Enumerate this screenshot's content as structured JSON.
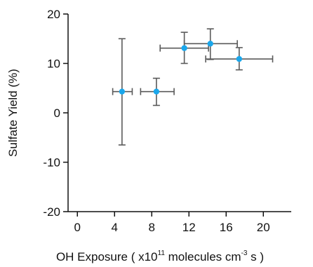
{
  "chart_data": {
    "type": "scatter",
    "xlabel": {
      "prefix": "OH Exposure ( x10",
      "exponent": "11",
      "middle": " molecules cm",
      "unit_exponent": "-3",
      "suffix": " s )"
    },
    "ylabel": "Sulfate Yield (%)",
    "xlim": [
      -1,
      23
    ],
    "ylim": [
      -20,
      20
    ],
    "x_ticks": [
      0,
      4,
      8,
      12,
      16,
      20
    ],
    "y_ticks": [
      -20,
      -10,
      0,
      10,
      20
    ],
    "grid": false,
    "legend": "none",
    "marker_color": "#1aa7ec",
    "errorbar_color": "#5a5a5a",
    "points": [
      {
        "x": 4.8,
        "y": 4.3,
        "xerr_low": 3.8,
        "xerr_high": 5.9,
        "yerr_low": -6.5,
        "yerr_high": 15.0
      },
      {
        "x": 8.5,
        "y": 4.3,
        "xerr_low": 6.8,
        "xerr_high": 10.4,
        "yerr_low": 1.5,
        "yerr_high": 7.0
      },
      {
        "x": 11.5,
        "y": 13.1,
        "xerr_low": 8.9,
        "xerr_high": 14.1,
        "yerr_low": 10.0,
        "yerr_high": 16.3
      },
      {
        "x": 14.3,
        "y": 14.0,
        "xerr_low": 11.5,
        "xerr_high": 17.2,
        "yerr_low": 10.8,
        "yerr_high": 17.0
      },
      {
        "x": 17.4,
        "y": 10.9,
        "xerr_low": 13.8,
        "xerr_high": 21.0,
        "yerr_low": 8.7,
        "yerr_high": 13.2
      }
    ]
  }
}
